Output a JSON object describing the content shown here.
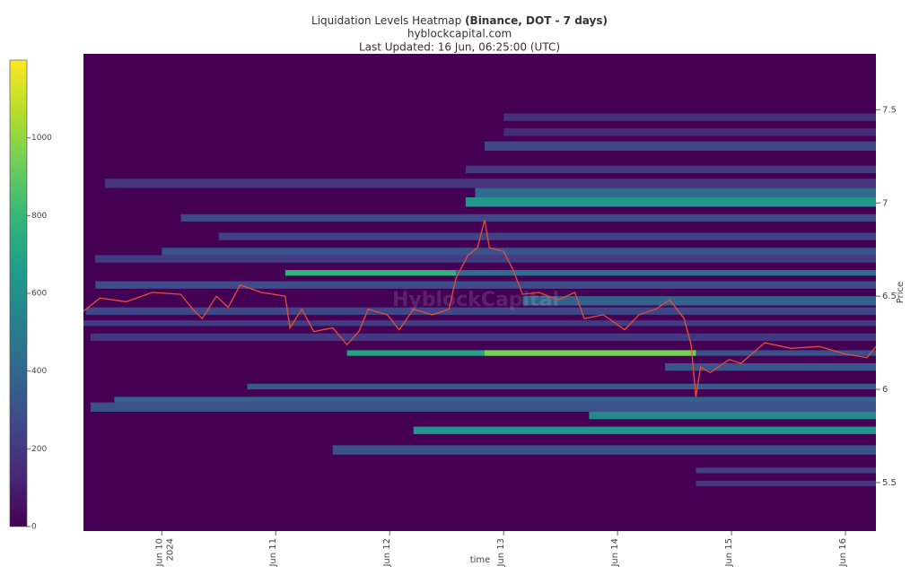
{
  "chart_data": {
    "type": "heatmap",
    "title": "Liquidation Levels Heatmap ",
    "title_bold": "(Binance, DOT - 7 days)",
    "subtitle": "hyblockcapital.com",
    "updated": "Last Updated: 16 Jun, 06:25:00 (UTC)",
    "watermark": "HyblockCapital",
    "xlabel": "time",
    "ylabel": "Price",
    "xlim": [
      "2024-06-09T07:30",
      "2024-06-16T06:25"
    ],
    "xticks": [
      {
        "value": "2024-06-10",
        "label": "Jun 10"
      },
      {
        "value": "2024-06-11",
        "label": "Jun 11"
      },
      {
        "value": "2024-06-12",
        "label": "Jun 12"
      },
      {
        "value": "2024-06-13",
        "label": "Jun 13"
      },
      {
        "value": "2024-06-14",
        "label": "Jun 14"
      },
      {
        "value": "2024-06-15",
        "label": "Jun 15"
      },
      {
        "value": "2024-06-16",
        "label": "Jun 16"
      }
    ],
    "xtick_year": "2024",
    "ylim": [
      5.24,
      7.8
    ],
    "yticks": [
      5.5,
      6,
      6.5,
      7,
      7.5
    ],
    "colorbar_lim": [
      0,
      1200
    ],
    "colorbar_ticks": [
      0,
      200,
      400,
      600,
      800,
      1000
    ],
    "colorscale": [
      "#440154",
      "#482878",
      "#3e4989",
      "#31688e",
      "#26828e",
      "#1f9e89",
      "#35b779",
      "#6ece58",
      "#b5de2b",
      "#fde725"
    ],
    "line_color": "#e0503a",
    "cells": [
      {
        "x0": "2024-06-09T12:00",
        "x1": "2024-06-16T06:25",
        "y0": 7.08,
        "y1": 7.13,
        "value": 180
      },
      {
        "x0": "2024-06-09T10:00",
        "x1": "2024-06-16T06:25",
        "y0": 6.68,
        "y1": 6.72,
        "value": 220
      },
      {
        "x0": "2024-06-09T10:00",
        "x1": "2024-06-16T06:25",
        "y0": 6.54,
        "y1": 6.58,
        "value": 280
      },
      {
        "x0": "2024-06-09T09:00",
        "x1": "2024-06-16T06:25",
        "y0": 6.26,
        "y1": 6.3,
        "value": 200
      },
      {
        "x0": "2024-06-09T09:00",
        "x1": "2024-06-16T06:25",
        "y0": 5.88,
        "y1": 5.93,
        "value": 300
      },
      {
        "x0": "2024-06-10T04:00",
        "x1": "2024-06-16T06:25",
        "y0": 6.9,
        "y1": 6.94,
        "value": 260
      },
      {
        "x0": "2024-06-10T12:00",
        "x1": "2024-06-16T06:25",
        "y0": 6.8,
        "y1": 6.84,
        "value": 240
      },
      {
        "x0": "2024-06-11T02:00",
        "x1": "2024-06-12T14:00",
        "y0": 6.61,
        "y1": 6.64,
        "value": 780
      },
      {
        "x0": "2024-06-12T14:00",
        "x1": "2024-06-16T06:25",
        "y0": 6.61,
        "y1": 6.64,
        "value": 420
      },
      {
        "x0": "2024-06-12T16:00",
        "x1": "2024-06-16T06:25",
        "y0": 6.98,
        "y1": 7.03,
        "value": 640
      },
      {
        "x0": "2024-06-12T18:00",
        "x1": "2024-06-16T06:25",
        "y0": 7.03,
        "y1": 7.08,
        "value": 420
      },
      {
        "x0": "2024-06-12T20:00",
        "x1": "2024-06-16T06:25",
        "y0": 7.28,
        "y1": 7.33,
        "value": 260
      },
      {
        "x0": "2024-06-13T00:00",
        "x1": "2024-06-16T06:25",
        "y0": 7.44,
        "y1": 7.48,
        "value": 160
      },
      {
        "x0": "2024-06-13T00:00",
        "x1": "2024-06-16T06:25",
        "y0": 7.36,
        "y1": 7.4,
        "value": 150
      },
      {
        "x0": "2024-06-11T15:00",
        "x1": "2024-06-14T16:30",
        "y0": 6.18,
        "y1": 6.21,
        "value": 700
      },
      {
        "x0": "2024-06-12T20:00",
        "x1": "2024-06-14T16:30",
        "y0": 6.18,
        "y1": 6.21,
        "value": 950
      },
      {
        "x0": "2024-06-14T16:30",
        "x1": "2024-06-16T06:25",
        "y0": 6.18,
        "y1": 6.21,
        "value": 300
      },
      {
        "x0": "2024-06-10T18:00",
        "x1": "2024-06-16T06:25",
        "y0": 6.0,
        "y1": 6.03,
        "value": 350
      },
      {
        "x0": "2024-06-09T14:00",
        "x1": "2024-06-16T06:25",
        "y0": 5.93,
        "y1": 5.96,
        "value": 380
      },
      {
        "x0": "2024-06-13T18:00",
        "x1": "2024-06-16T06:25",
        "y0": 5.84,
        "y1": 5.88,
        "value": 560
      },
      {
        "x0": "2024-06-12T05:00",
        "x1": "2024-06-16T06:25",
        "y0": 5.76,
        "y1": 5.8,
        "value": 620
      },
      {
        "x0": "2024-06-11T12:00",
        "x1": "2024-06-16T06:25",
        "y0": 5.65,
        "y1": 5.7,
        "value": 300
      },
      {
        "x0": "2024-06-14T16:30",
        "x1": "2024-06-16T06:25",
        "y0": 5.55,
        "y1": 5.58,
        "value": 220
      },
      {
        "x0": "2024-06-14T16:30",
        "x1": "2024-06-16T06:25",
        "y0": 5.48,
        "y1": 5.51,
        "value": 180
      },
      {
        "x0": "2024-06-09T08:00",
        "x1": "2024-06-16T06:25",
        "y0": 6.4,
        "y1": 6.44,
        "value": 260
      },
      {
        "x0": "2024-06-10T00:00",
        "x1": "2024-06-16T06:25",
        "y0": 6.72,
        "y1": 6.76,
        "value": 300
      },
      {
        "x0": "2024-06-13T04:00",
        "x1": "2024-06-16T06:25",
        "y0": 6.45,
        "y1": 6.5,
        "value": 380
      },
      {
        "x0": "2024-06-14T10:00",
        "x1": "2024-06-16T06:25",
        "y0": 6.1,
        "y1": 6.14,
        "value": 320
      },
      {
        "x0": "2024-06-09T07:30",
        "x1": "2024-06-16T06:25",
        "y0": 6.34,
        "y1": 6.37,
        "value": 220
      },
      {
        "x0": "2024-06-12T16:00",
        "x1": "2024-06-16T06:25",
        "y0": 7.16,
        "y1": 7.2,
        "value": 200
      }
    ],
    "price": {
      "x": [
        "2024-06-09T07:30",
        "2024-06-09T11:00",
        "2024-06-09T16:30",
        "2024-06-09T22:00",
        "2024-06-10T04:00",
        "2024-06-10T06:30",
        "2024-06-10T08:30",
        "2024-06-10T11:30",
        "2024-06-10T14:00",
        "2024-06-10T16:30",
        "2024-06-10T21:00",
        "2024-06-11T02:00",
        "2024-06-11T03:00",
        "2024-06-11T05:30",
        "2024-06-11T08:00",
        "2024-06-11T12:00",
        "2024-06-11T15:00",
        "2024-06-11T17:30",
        "2024-06-11T19:30",
        "2024-06-11T23:30",
        "2024-06-12T02:00",
        "2024-06-12T05:00",
        "2024-06-12T09:00",
        "2024-06-12T12:30",
        "2024-06-12T14:00",
        "2024-06-12T16:30",
        "2024-06-12T18:30",
        "2024-06-12T20:00",
        "2024-06-12T21:00",
        "2024-06-13T00:00",
        "2024-06-13T02:00",
        "2024-06-13T04:00",
        "2024-06-13T07:30",
        "2024-06-13T11:30",
        "2024-06-13T15:00",
        "2024-06-13T17:00",
        "2024-06-13T21:00",
        "2024-06-14T01:30",
        "2024-06-14T04:30",
        "2024-06-14T08:00",
        "2024-06-14T11:00",
        "2024-06-14T14:00",
        "2024-06-14T15:30",
        "2024-06-14T16:30",
        "2024-06-14T17:30",
        "2024-06-14T19:30",
        "2024-06-14T23:30",
        "2024-06-15T02:00",
        "2024-06-15T07:00",
        "2024-06-15T12:30",
        "2024-06-15T18:30",
        "2024-06-16T00:00",
        "2024-06-16T04:30",
        "2024-06-16T06:25"
      ],
      "values": [
        6.42,
        6.49,
        6.47,
        6.52,
        6.51,
        6.43,
        6.38,
        6.5,
        6.44,
        6.56,
        6.52,
        6.5,
        6.33,
        6.43,
        6.31,
        6.33,
        6.24,
        6.31,
        6.43,
        6.4,
        6.32,
        6.43,
        6.4,
        6.43,
        6.6,
        6.72,
        6.76,
        6.91,
        6.76,
        6.74,
        6.64,
        6.51,
        6.52,
        6.48,
        6.52,
        6.38,
        6.4,
        6.32,
        6.4,
        6.43,
        6.48,
        6.38,
        6.24,
        5.96,
        6.12,
        6.09,
        6.16,
        6.14,
        6.25,
        6.22,
        6.23,
        6.19,
        6.17,
        6.23
      ]
    }
  }
}
